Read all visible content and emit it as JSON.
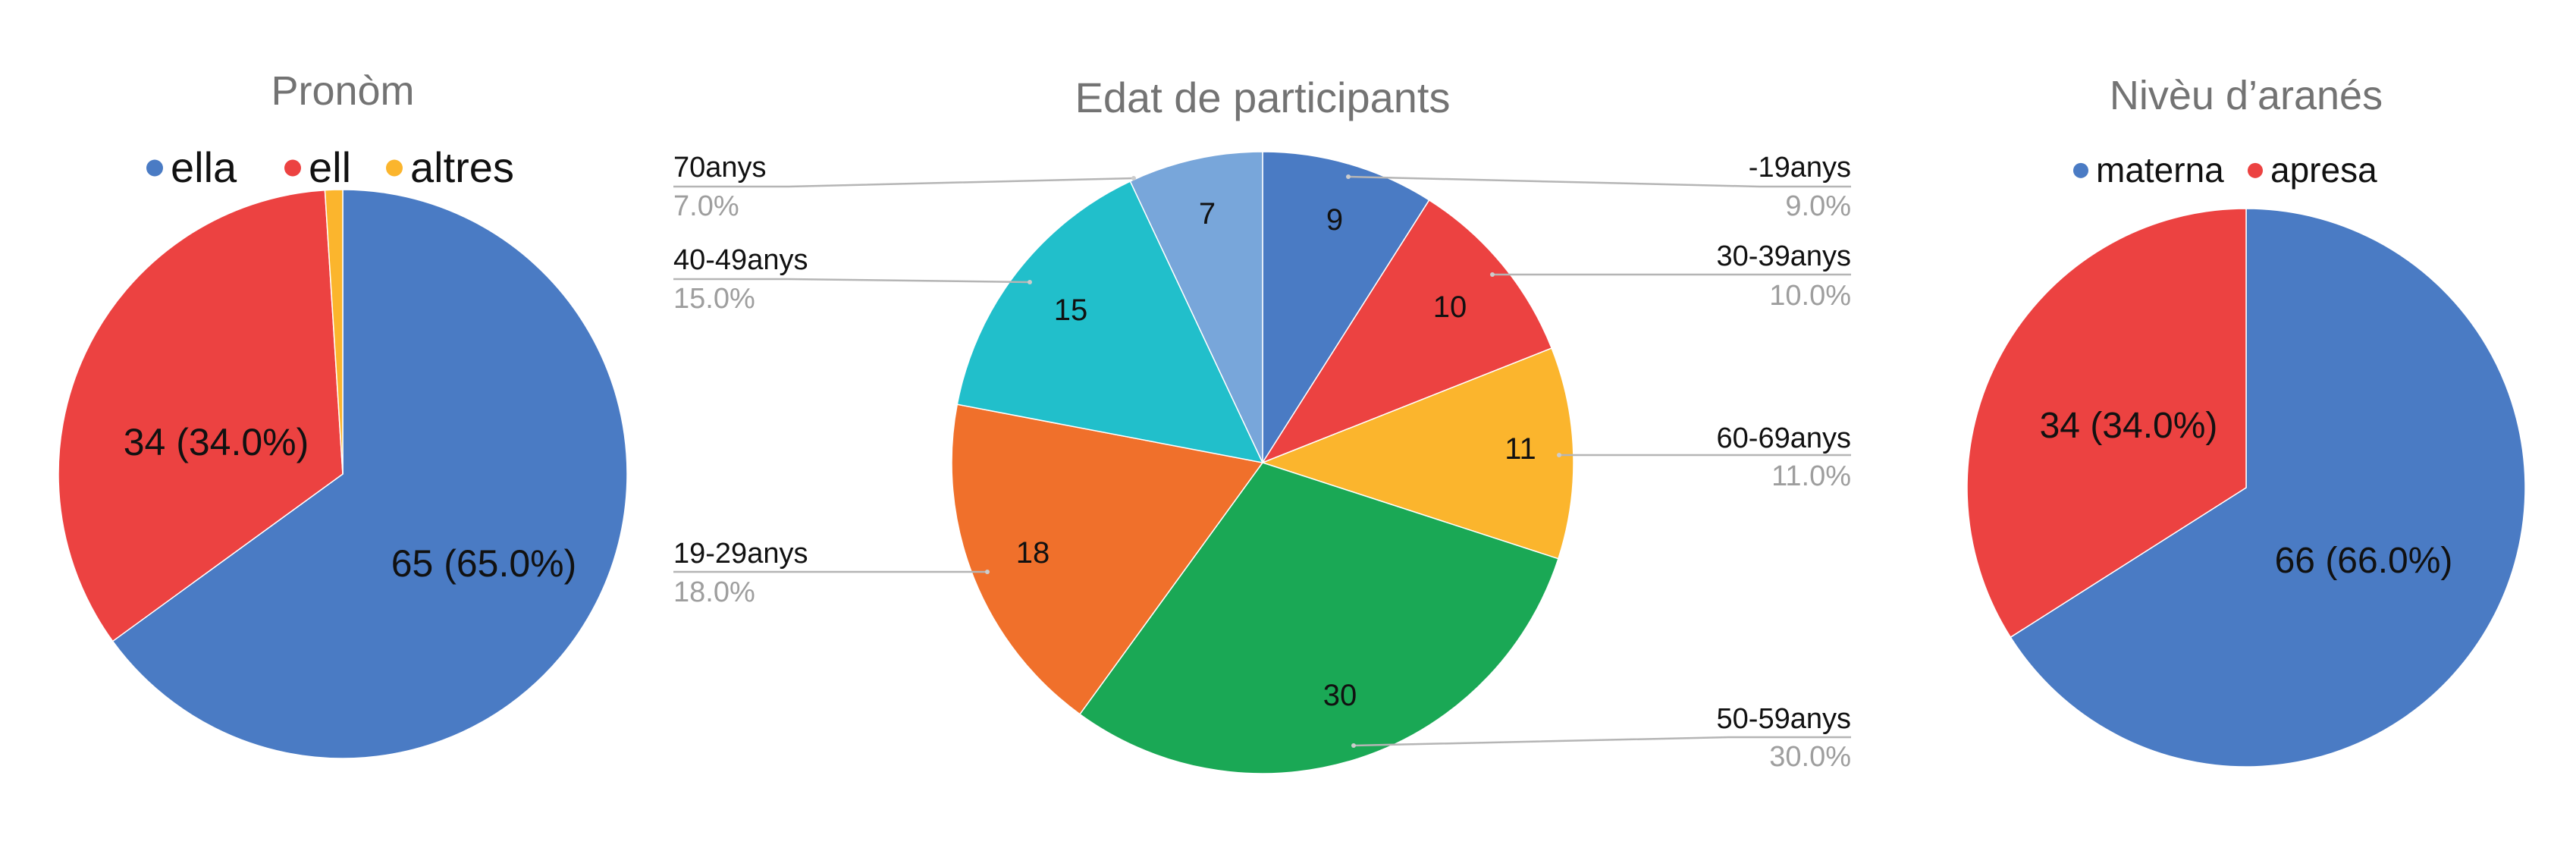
{
  "colors": {
    "blue": "#4a7bc4",
    "red": "#ec4241",
    "yellow": "#fbb52d",
    "green": "#1aa855",
    "orange": "#f0702b",
    "teal": "#21bfcb",
    "light-blue": "#78a6da",
    "title": "#737373",
    "leader": "#b5b5b5",
    "sub-label": "#9e9e9e"
  },
  "chart_data": [
    {
      "type": "pie",
      "title": "Pronòm",
      "legend_position": "top",
      "slices": [
        {
          "label": "ella",
          "value": 65,
          "percent": "65.0%",
          "color": "#4a7bc4",
          "data_label": "65 (65.0%)"
        },
        {
          "label": "ell",
          "value": 34,
          "percent": "34.0%",
          "color": "#ec4241",
          "data_label": "34 (34.0%)"
        },
        {
          "label": "altres",
          "value": 1,
          "percent": "1.0%",
          "color": "#fbb52d",
          "data_label": ""
        }
      ]
    },
    {
      "type": "pie",
      "title": "Edat de participants",
      "legend_position": "labeled",
      "slices": [
        {
          "label": "-19anys",
          "value": 9,
          "percent": "9.0%",
          "color": "#4a7bc4",
          "data_label": "9"
        },
        {
          "label": "30-39anys",
          "value": 10,
          "percent": "10.0%",
          "color": "#ec4241",
          "data_label": "10"
        },
        {
          "label": "60-69anys",
          "value": 11,
          "percent": "11.0%",
          "color": "#fbb52d",
          "data_label": "11"
        },
        {
          "label": "50-59anys",
          "value": 30,
          "percent": "30.0%",
          "color": "#1aa855",
          "data_label": "30"
        },
        {
          "label": "19-29anys",
          "value": 18,
          "percent": "18.0%",
          "color": "#f0702b",
          "data_label": "18"
        },
        {
          "label": "40-49anys",
          "value": 15,
          "percent": "15.0%",
          "color": "#21bfcb",
          "data_label": "15"
        },
        {
          "label": "70anys",
          "value": 7,
          "percent": "7.0%",
          "color": "#78a6da",
          "data_label": "7"
        }
      ]
    },
    {
      "type": "pie",
      "title": "Nivèu d’aranés",
      "legend_position": "top",
      "slices": [
        {
          "label": "materna",
          "value": 66,
          "percent": "66.0%",
          "color": "#4a7bc4",
          "data_label": "66 (66.0%)"
        },
        {
          "label": "apresa",
          "value": 34,
          "percent": "34.0%",
          "color": "#ec4241",
          "data_label": "34 (34.0%)"
        }
      ]
    }
  ]
}
